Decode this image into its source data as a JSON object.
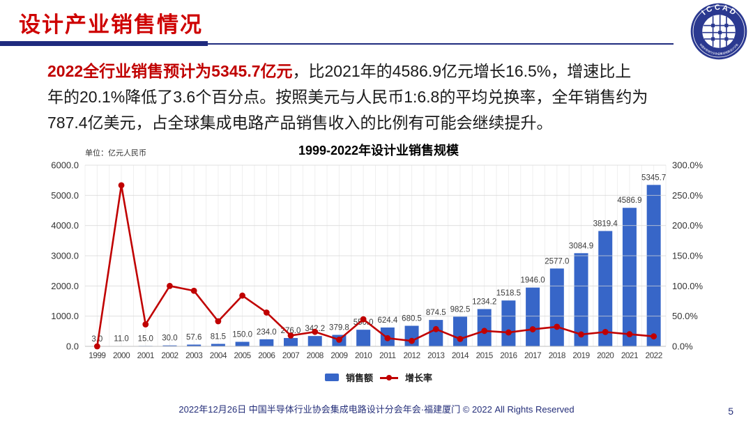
{
  "header": {
    "title": "设计产业销售情况"
  },
  "logo": {
    "arc_text": "I C C A D",
    "ring_text": "中国半导体行业协会集成电路设计分会",
    "navy": "#2b3990"
  },
  "summary": {
    "highlight": "2022全行业销售预计为5345.7亿元",
    "line1_rest": "，比2021年的4586.9亿元增长16.5%，增速比上",
    "line2": "年的20.1%降低了3.6个百分点。按照美元与人民币1:6.8的平均兑换率，全年销售约为",
    "line3": "787.4亿美元，占全球集成电路产品销售收入的比例有可能会继续提升。"
  },
  "chart_data": {
    "type": "bar",
    "title": "1999-2022年设计业销售规模",
    "unit_label": "单位：亿元人民币",
    "categories": [
      "1999",
      "2000",
      "2001",
      "2002",
      "2003",
      "2004",
      "2005",
      "2006",
      "2007",
      "2008",
      "2009",
      "2010",
      "2011",
      "2012",
      "2013",
      "2014",
      "2015",
      "2016",
      "2017",
      "2018",
      "2019",
      "2020",
      "2021",
      "2022"
    ],
    "series": [
      {
        "name": "销售额",
        "type": "bar",
        "color": "#3766c8",
        "values": [
          3.0,
          11.0,
          15.0,
          30.0,
          57.6,
          81.5,
          150.0,
          234.0,
          276.0,
          342.2,
          379.8,
          550.0,
          624.4,
          680.5,
          874.5,
          982.5,
          1234.2,
          1518.5,
          1946.0,
          2577.0,
          3084.9,
          3819.4,
          4586.9,
          5345.7
        ]
      },
      {
        "name": "增长率",
        "type": "line",
        "color": "#c00000",
        "values_pct": [
          0.0,
          266.7,
          36.4,
          100.0,
          92.0,
          41.5,
          84.0,
          56.0,
          17.9,
          24.0,
          11.0,
          44.8,
          13.5,
          9.0,
          28.5,
          12.3,
          25.6,
          23.0,
          28.2,
          32.4,
          19.7,
          23.8,
          20.1,
          16.5
        ]
      }
    ],
    "left_axis": {
      "min": 0,
      "max": 6000,
      "step": 1000,
      "decimals": 1
    },
    "right_axis": {
      "min": 0,
      "max": 300,
      "step": 50,
      "decimals": 1,
      "suffix": "%"
    },
    "grid": true,
    "legend_position": "bottom"
  },
  "footer": {
    "text": "2022年12月26日 中国半导体行业协会集成电路设计分会年会·福建厦门 © 2022 All Rights Reserved",
    "page": "5"
  }
}
